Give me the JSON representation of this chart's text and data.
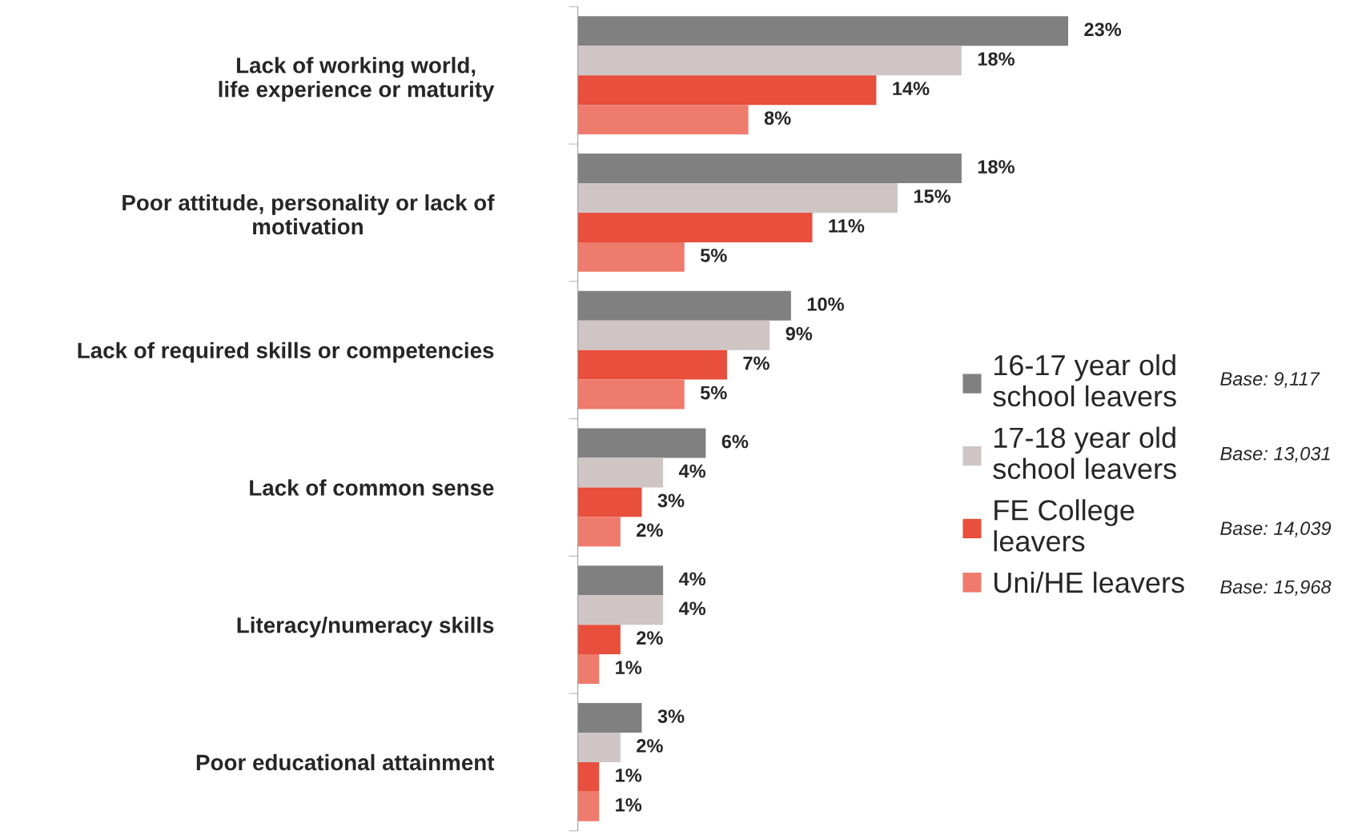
{
  "chart_data": {
    "type": "bar",
    "orientation": "horizontal",
    "categories": [
      "Lack of working world,\nlife experience or maturity",
      "Poor attitude, personality or lack of\nmotivation",
      "Lack of required skills or competencies",
      "Lack of common sense",
      "Literacy/numeracy skills",
      "Poor educational attainment"
    ],
    "series": [
      {
        "name": "16-17 year old\nschool leavers",
        "color": "#808080",
        "values": [
          23,
          18,
          10,
          6,
          4,
          3
        ],
        "value_labels": [
          "23%",
          "18%",
          "10%",
          "6%",
          "4%",
          "3%"
        ]
      },
      {
        "name": "17-18 year old\nschool leavers",
        "color": "#d0c5c5",
        "values": [
          18,
          15,
          9,
          4,
          4,
          2
        ],
        "value_labels": [
          "18%",
          "15%",
          "9%",
          "4%",
          "4%",
          "2%"
        ]
      },
      {
        "name": "FE College\nleavers",
        "color": "#e84f3d",
        "values": [
          14,
          11,
          7,
          3,
          2,
          1
        ],
        "value_labels": [
          "14%",
          "11%",
          "7%",
          "3%",
          "2%",
          "1%"
        ]
      },
      {
        "name": "Uni/HE leavers",
        "color": "#ef7b6d",
        "values": [
          8,
          5,
          5,
          2,
          1,
          1
        ],
        "value_labels": [
          "8%",
          "5%",
          "5%",
          "2%",
          "1%",
          "1%"
        ]
      }
    ],
    "annotations": [
      "Base: 9,117",
      "Base: 13,031",
      "Base: 14,039",
      "Base: 15,968"
    ],
    "legend": "right",
    "tick_labels": "y",
    "grid": false
  }
}
